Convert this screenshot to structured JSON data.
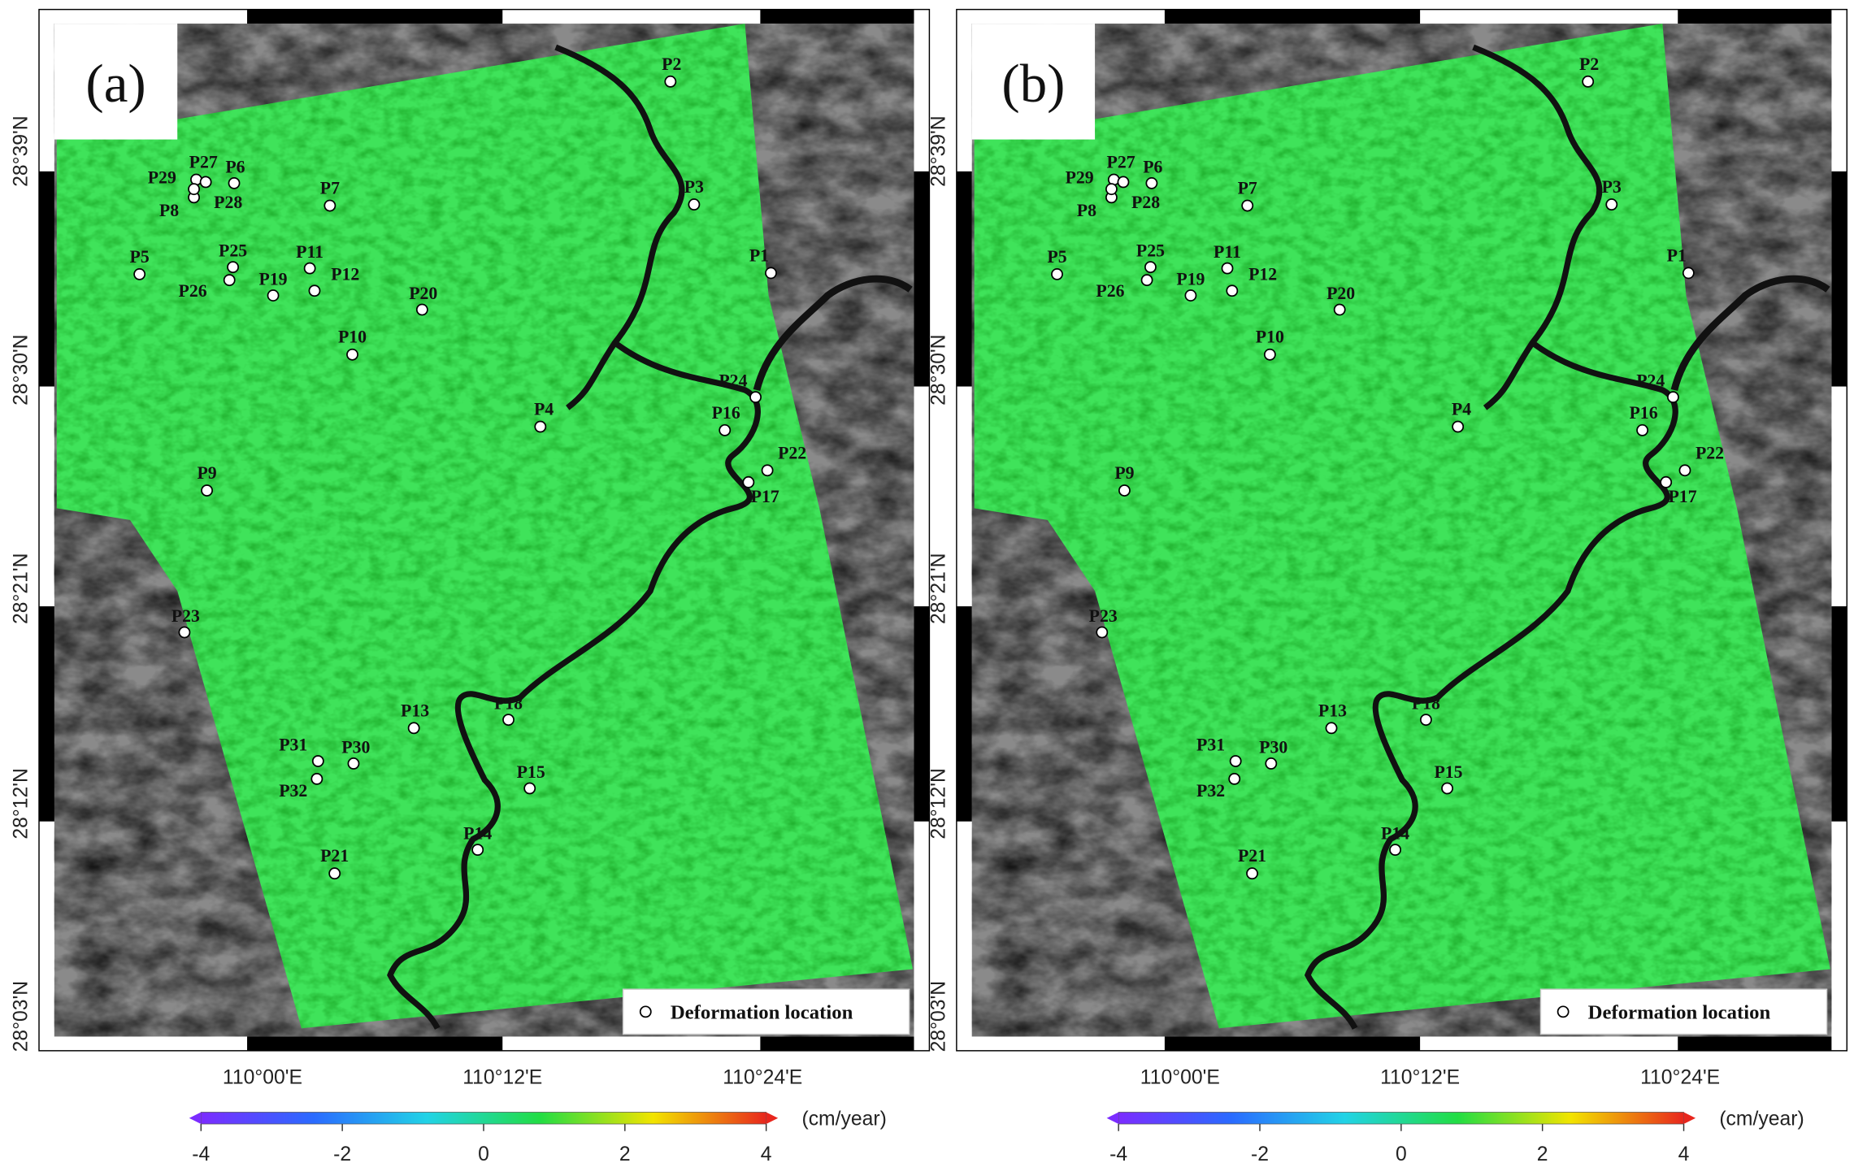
{
  "panels": [
    {
      "label": "(a)"
    },
    {
      "label": "(b)"
    }
  ],
  "lat_labels": [
    "28°03'N",
    "28°12'N",
    "28°21'N",
    "28°30'N",
    "28°39'N"
  ],
  "lon_labels": [
    "110°00'E",
    "110°12'E",
    "110°24'E"
  ],
  "points": [
    "P1",
    "P2",
    "P3",
    "P4",
    "P5",
    "P6",
    "P7",
    "P8",
    "P9",
    "P10",
    "P11",
    "P12",
    "P13",
    "P14",
    "P15",
    "P16",
    "P17",
    "P18",
    "P19",
    "P20",
    "P21",
    "P22",
    "P23",
    "P24",
    "P25",
    "P26",
    "P27",
    "P28",
    "P29",
    "P30",
    "P31",
    "P32"
  ],
  "legend": "Deformation location",
  "colorbar": {
    "ticks": [
      -4,
      -2,
      0,
      2,
      4
    ],
    "unit": "(cm/year)",
    "colors": [
      "#7b2cff",
      "#2a6bff",
      "#22d3e6",
      "#22dd44",
      "#f2e400",
      "#e8261d"
    ]
  }
}
